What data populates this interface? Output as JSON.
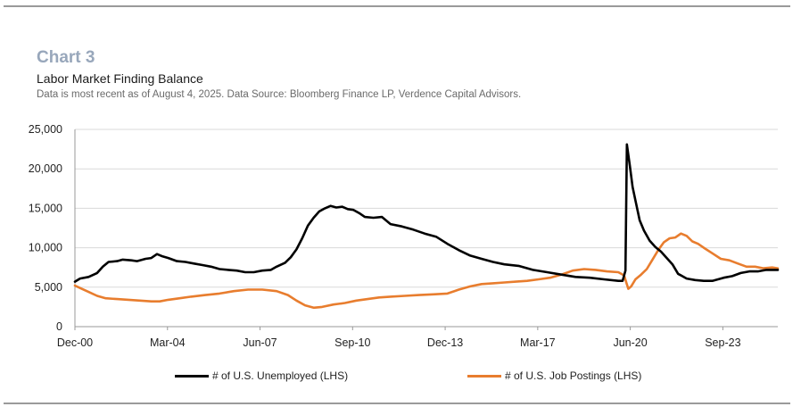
{
  "header": {
    "chart_number": "Chart 3",
    "title": "Labor Market Finding Balance",
    "subtitle": "Data is most recent as of August 4, 2025. Data Source: Bloomberg Finance LP, Verdence Capital Advisors."
  },
  "colors": {
    "unemployed": "#000000",
    "postings": "#e87d2e",
    "grid": "#d9d9d9",
    "axis": "#999999"
  },
  "chart_data": {
    "type": "line",
    "title": "Labor Market Finding Balance",
    "xlabel": "",
    "ylabel": "",
    "ylim": [
      0,
      25000
    ],
    "yticks": [
      0,
      5000,
      10000,
      15000,
      20000,
      25000
    ],
    "ytick_labels": [
      "0",
      "5,000",
      "10,000",
      "15,000",
      "20,000",
      "25,000"
    ],
    "xlim": [
      2000.92,
      2025.6
    ],
    "xticks": [
      2000.92,
      2004.17,
      2007.42,
      2010.67,
      2013.92,
      2017.17,
      2020.42,
      2023.67
    ],
    "xtick_labels": [
      "Dec-00",
      "Mar-04",
      "Jun-07",
      "Sep-10",
      "Dec-13",
      "Mar-17",
      "Jun-20",
      "Sep-23"
    ],
    "grid": true,
    "legend_position": "bottom",
    "series": [
      {
        "name": "# of U.S. Unemployed (LHS)",
        "color": "#000000",
        "points": [
          [
            2000.92,
            5700
          ],
          [
            2001.1,
            6100
          ],
          [
            2001.4,
            6300
          ],
          [
            2001.7,
            6800
          ],
          [
            2001.9,
            7600
          ],
          [
            2002.1,
            8200
          ],
          [
            2002.4,
            8300
          ],
          [
            2002.6,
            8500
          ],
          [
            2002.9,
            8400
          ],
          [
            2003.1,
            8300
          ],
          [
            2003.4,
            8600
          ],
          [
            2003.6,
            8700
          ],
          [
            2003.8,
            9200
          ],
          [
            2004.0,
            8900
          ],
          [
            2004.2,
            8700
          ],
          [
            2004.5,
            8300
          ],
          [
            2004.8,
            8200
          ],
          [
            2005.1,
            8000
          ],
          [
            2005.4,
            7800
          ],
          [
            2005.7,
            7600
          ],
          [
            2006.0,
            7300
          ],
          [
            2006.3,
            7200
          ],
          [
            2006.6,
            7100
          ],
          [
            2006.9,
            6900
          ],
          [
            2007.2,
            6900
          ],
          [
            2007.5,
            7100
          ],
          [
            2007.8,
            7200
          ],
          [
            2008.0,
            7600
          ],
          [
            2008.3,
            8100
          ],
          [
            2008.5,
            8800
          ],
          [
            2008.7,
            9800
          ],
          [
            2008.9,
            11200
          ],
          [
            2009.1,
            12800
          ],
          [
            2009.3,
            13800
          ],
          [
            2009.5,
            14600
          ],
          [
            2009.7,
            15000
          ],
          [
            2009.9,
            15300
          ],
          [
            2010.1,
            15100
          ],
          [
            2010.3,
            15200
          ],
          [
            2010.5,
            14900
          ],
          [
            2010.7,
            14800
          ],
          [
            2010.9,
            14400
          ],
          [
            2011.1,
            13900
          ],
          [
            2011.4,
            13800
          ],
          [
            2011.7,
            13900
          ],
          [
            2012.0,
            13000
          ],
          [
            2012.4,
            12700
          ],
          [
            2012.8,
            12300
          ],
          [
            2013.2,
            11800
          ],
          [
            2013.6,
            11400
          ],
          [
            2014.0,
            10500
          ],
          [
            2014.4,
            9700
          ],
          [
            2014.8,
            9000
          ],
          [
            2015.2,
            8600
          ],
          [
            2015.6,
            8200
          ],
          [
            2016.0,
            7900
          ],
          [
            2016.5,
            7700
          ],
          [
            2017.0,
            7200
          ],
          [
            2017.5,
            6900
          ],
          [
            2018.0,
            6600
          ],
          [
            2018.5,
            6300
          ],
          [
            2019.0,
            6200
          ],
          [
            2019.5,
            6000
          ],
          [
            2020.0,
            5800
          ],
          [
            2020.15,
            5800
          ],
          [
            2020.25,
            7100
          ],
          [
            2020.3,
            23100
          ],
          [
            2020.4,
            20500
          ],
          [
            2020.5,
            17700
          ],
          [
            2020.6,
            16000
          ],
          [
            2020.75,
            13500
          ],
          [
            2020.9,
            12200
          ],
          [
            2021.1,
            10900
          ],
          [
            2021.3,
            10100
          ],
          [
            2021.5,
            9500
          ],
          [
            2021.7,
            8700
          ],
          [
            2021.9,
            7900
          ],
          [
            2022.1,
            6700
          ],
          [
            2022.4,
            6100
          ],
          [
            2022.7,
            5900
          ],
          [
            2023.0,
            5800
          ],
          [
            2023.3,
            5800
          ],
          [
            2023.7,
            6200
          ],
          [
            2024.0,
            6400
          ],
          [
            2024.3,
            6800
          ],
          [
            2024.6,
            7000
          ],
          [
            2024.9,
            7000
          ],
          [
            2025.2,
            7200
          ],
          [
            2025.6,
            7200
          ]
        ]
      },
      {
        "name": "# of U.S. Job Postings (LHS)",
        "color": "#e87d2e",
        "points": [
          [
            2000.92,
            5200
          ],
          [
            2001.1,
            4900
          ],
          [
            2001.4,
            4400
          ],
          [
            2001.7,
            3900
          ],
          [
            2002.0,
            3600
          ],
          [
            2002.4,
            3500
          ],
          [
            2002.8,
            3400
          ],
          [
            2003.2,
            3300
          ],
          [
            2003.6,
            3200
          ],
          [
            2003.9,
            3200
          ],
          [
            2004.2,
            3400
          ],
          [
            2004.6,
            3600
          ],
          [
            2005.0,
            3800
          ],
          [
            2005.5,
            4000
          ],
          [
            2006.0,
            4200
          ],
          [
            2006.5,
            4500
          ],
          [
            2007.0,
            4700
          ],
          [
            2007.5,
            4700
          ],
          [
            2008.0,
            4500
          ],
          [
            2008.4,
            4000
          ],
          [
            2008.7,
            3300
          ],
          [
            2009.0,
            2700
          ],
          [
            2009.3,
            2400
          ],
          [
            2009.6,
            2500
          ],
          [
            2010.0,
            2800
          ],
          [
            2010.4,
            3000
          ],
          [
            2010.8,
            3300
          ],
          [
            2011.2,
            3500
          ],
          [
            2011.6,
            3700
          ],
          [
            2012.0,
            3800
          ],
          [
            2012.5,
            3900
          ],
          [
            2013.0,
            4000
          ],
          [
            2013.5,
            4100
          ],
          [
            2014.0,
            4200
          ],
          [
            2014.4,
            4700
          ],
          [
            2014.8,
            5100
          ],
          [
            2015.2,
            5400
          ],
          [
            2015.6,
            5500
          ],
          [
            2016.0,
            5600
          ],
          [
            2016.4,
            5700
          ],
          [
            2016.8,
            5800
          ],
          [
            2017.2,
            6000
          ],
          [
            2017.6,
            6200
          ],
          [
            2018.0,
            6600
          ],
          [
            2018.4,
            7100
          ],
          [
            2018.8,
            7300
          ],
          [
            2019.2,
            7200
          ],
          [
            2019.6,
            7000
          ],
          [
            2020.0,
            6900
          ],
          [
            2020.2,
            6500
          ],
          [
            2020.35,
            4800
          ],
          [
            2020.45,
            5100
          ],
          [
            2020.6,
            6000
          ],
          [
            2020.8,
            6600
          ],
          [
            2021.0,
            7300
          ],
          [
            2021.2,
            8500
          ],
          [
            2021.4,
            9700
          ],
          [
            2021.6,
            10700
          ],
          [
            2021.8,
            11200
          ],
          [
            2022.0,
            11300
          ],
          [
            2022.2,
            11800
          ],
          [
            2022.4,
            11500
          ],
          [
            2022.6,
            10800
          ],
          [
            2022.8,
            10500
          ],
          [
            2023.0,
            10000
          ],
          [
            2023.3,
            9300
          ],
          [
            2023.6,
            8600
          ],
          [
            2023.9,
            8400
          ],
          [
            2024.2,
            8000
          ],
          [
            2024.5,
            7600
          ],
          [
            2024.8,
            7600
          ],
          [
            2025.1,
            7400
          ],
          [
            2025.4,
            7500
          ],
          [
            2025.6,
            7400
          ]
        ]
      }
    ]
  }
}
